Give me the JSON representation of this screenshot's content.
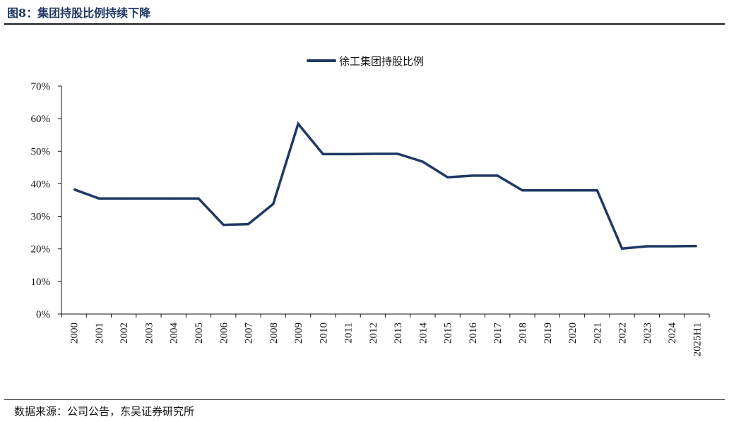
{
  "figure": {
    "title": "图8：集团持股比例持续下降",
    "source": "数据来源：公司公告，东吴证券研究所"
  },
  "chart_data": {
    "type": "line",
    "x": [
      "2000",
      "2001",
      "2002",
      "2003",
      "2004",
      "2005",
      "2006",
      "2007",
      "2008",
      "2009",
      "2010",
      "2011",
      "2012",
      "2013",
      "2014",
      "2015",
      "2016",
      "2017",
      "2018",
      "2019",
      "2020",
      "2021",
      "2022",
      "2023",
      "2024",
      "2025H1"
    ],
    "series": [
      {
        "name": "徐工集团持股比例",
        "color": "#1f3864",
        "values": [
          38.3,
          35.5,
          35.5,
          35.5,
          35.5,
          35.5,
          27.4,
          27.6,
          33.8,
          58.4,
          49.1,
          49.1,
          49.2,
          49.2,
          46.8,
          42.0,
          42.5,
          42.5,
          38.0,
          38.0,
          38.0,
          38.0,
          20.1,
          20.8,
          20.8,
          20.9
        ]
      }
    ],
    "yticks": [
      "0%",
      "10%",
      "20%",
      "30%",
      "40%",
      "50%",
      "60%",
      "70%"
    ],
    "ylim": [
      0,
      70
    ],
    "grid": false,
    "legend_position": "top-center"
  }
}
